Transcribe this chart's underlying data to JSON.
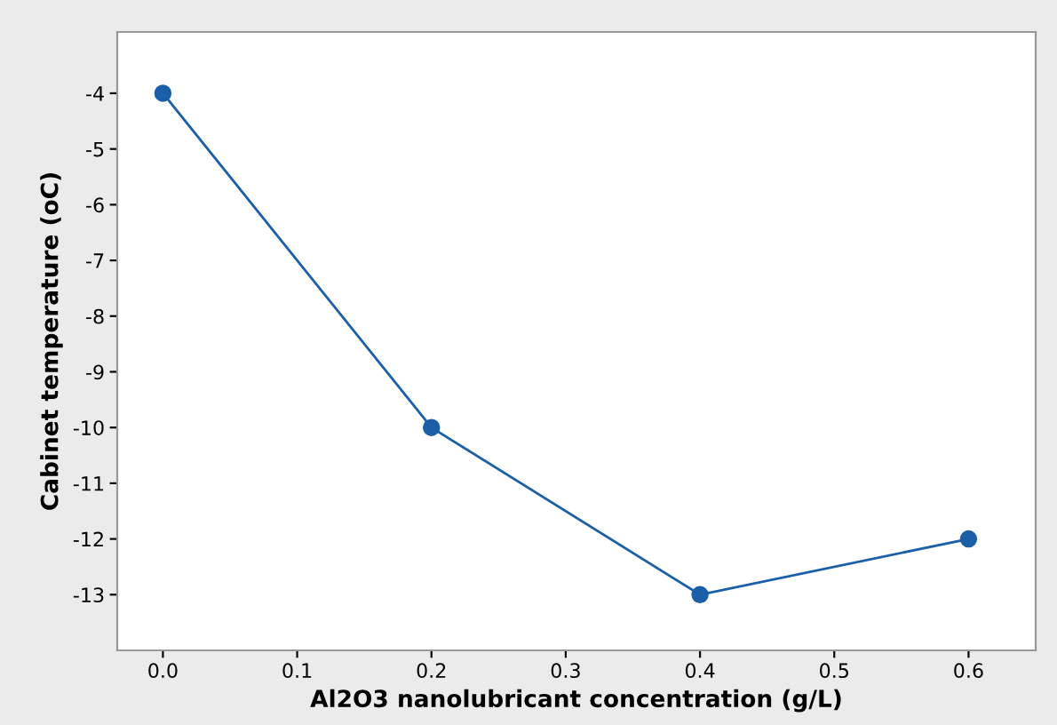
{
  "chart_data": {
    "type": "line",
    "xlabel": "Al2O3 nanolubricant concentration (g/L)",
    "ylabel": "Cabinet temperature (oC)",
    "x": [
      0.0,
      0.2,
      0.4,
      0.6
    ],
    "series": [
      {
        "color": "#1a5fa8",
        "values": [
          -4,
          -10,
          -13,
          -12
        ]
      }
    ],
    "marker": "circle",
    "line_style": "solid",
    "grid": false,
    "legend": false,
    "xlim": [
      -0.034,
      0.65
    ],
    "ylim": [
      -14.0,
      -2.9
    ],
    "xticks": [
      {
        "value": 0.0,
        "label": "0.0"
      },
      {
        "value": 0.1,
        "label": "0.1"
      },
      {
        "value": 0.2,
        "label": "0.2"
      },
      {
        "value": 0.3,
        "label": "0.3"
      },
      {
        "value": 0.4,
        "label": "0.4"
      },
      {
        "value": 0.5,
        "label": "0.5"
      },
      {
        "value": 0.6,
        "label": "0.6"
      }
    ],
    "yticks": [
      -4,
      -5,
      -6,
      -7,
      -8,
      -9,
      -10,
      -11,
      -12,
      -13
    ]
  }
}
